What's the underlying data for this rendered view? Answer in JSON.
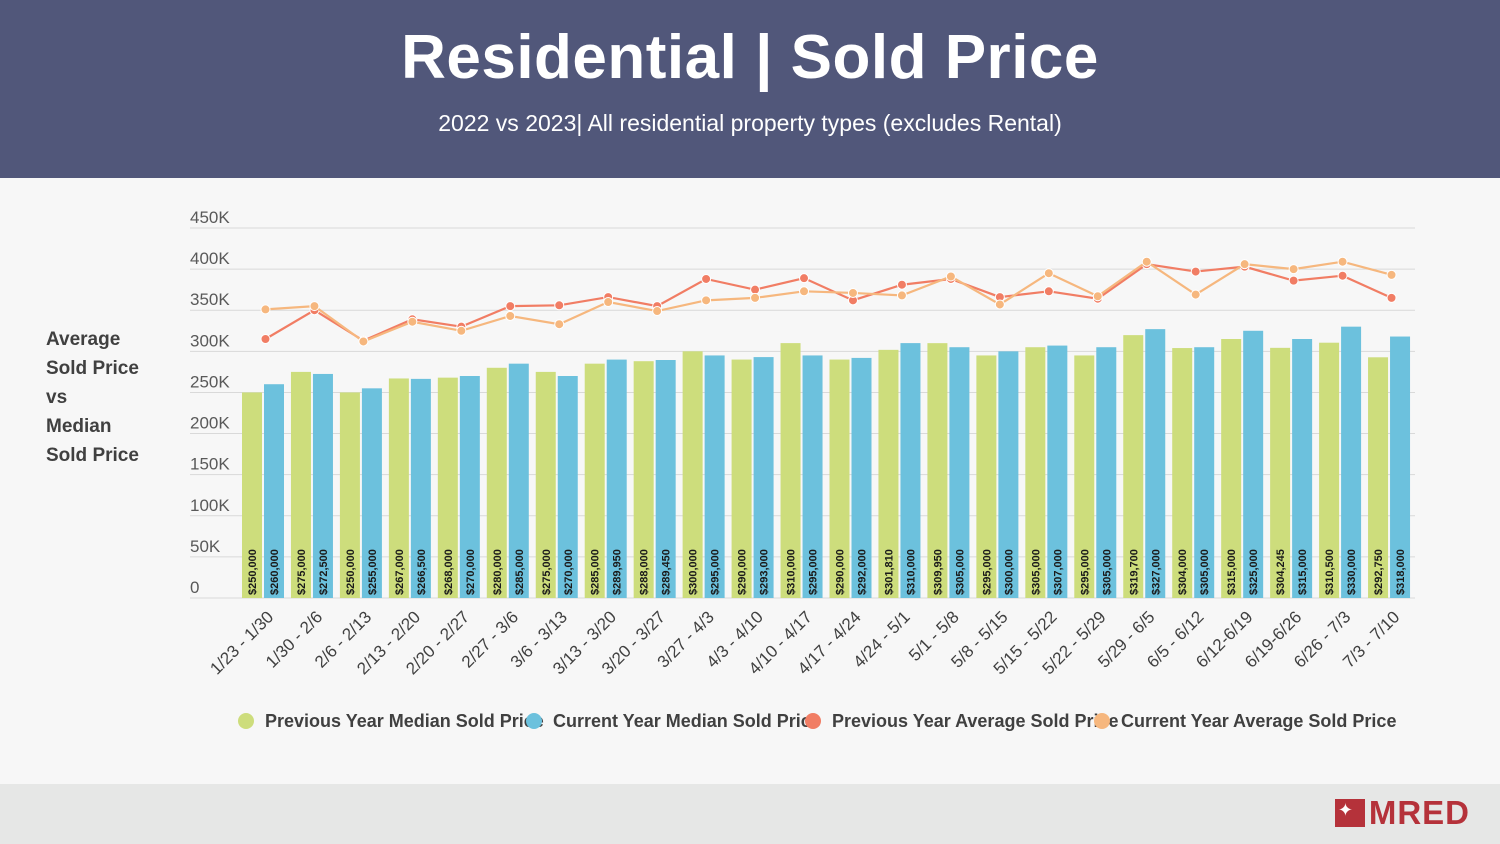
{
  "header": {
    "title": "Residential | Sold Price",
    "subtitle": "2022 vs 2023| All residential property types (excludes Rental)"
  },
  "side_label": [
    "Average",
    "Sold Price",
    "vs",
    "Median",
    "Sold Price"
  ],
  "logo": {
    "text": "MRED"
  },
  "colors": {
    "header_bg": "#51577a",
    "prev_median": "#cddd7c",
    "curr_median": "#6cc1dd",
    "prev_average": "#f17d64",
    "curr_average": "#f6b77e",
    "logo": "#b5323a"
  },
  "chart_data": {
    "type": "bar",
    "categories": [
      "1/23 - 1/30",
      "1/30 - 2/6",
      "2/6 - 2/13",
      "2/13 - 2/20",
      "2/20 - 2/27",
      "2/27 - 3/6",
      "3/6 - 3/13",
      "3/13 - 3/20",
      "3/20 - 3/27",
      "3/27 - 4/3",
      "4/3 - 4/10",
      "4/10 - 4/17",
      "4/17 - 4/24",
      "4/24 - 5/1",
      "5/1 - 5/8",
      "5/8 - 5/15",
      "5/15 - 5/22",
      "5/22 - 5/29",
      "5/29 - 6/5",
      "6/5 - 6/12",
      "6/12-6/19",
      "6/19-6/26",
      "6/26 - 7/3",
      "7/3 - 7/10"
    ],
    "ylim": [
      0,
      450000
    ],
    "yticks": [
      {
        "value": 0,
        "label": "0"
      },
      {
        "value": 50000,
        "label": "50K"
      },
      {
        "value": 100000,
        "label": "100K"
      },
      {
        "value": 150000,
        "label": "150K"
      },
      {
        "value": 200000,
        "label": "200K"
      },
      {
        "value": 250000,
        "label": "250K"
      },
      {
        "value": 300000,
        "label": "300K"
      },
      {
        "value": 350000,
        "label": "350K"
      },
      {
        "value": 400000,
        "label": "400K"
      },
      {
        "value": 450000,
        "label": "450K"
      }
    ],
    "grid": true,
    "legend_position": "bottom",
    "series": [
      {
        "name": "Previous Year Median Sold Price",
        "kind": "bar",
        "color": "#cddd7c",
        "values": [
          250000,
          275000,
          250000,
          267000,
          268000,
          280000,
          275000,
          285000,
          288000,
          300000,
          290000,
          310000,
          290000,
          301810,
          309950,
          295000,
          305000,
          295000,
          319700,
          304000,
          315000,
          304245,
          310500,
          292750
        ],
        "labels": [
          "$250,000",
          "$275,000",
          "$250,000",
          "$267,000",
          "$268,000",
          "$280,000",
          "$275,000",
          "$285,000",
          "$288,000",
          "$300,000",
          "$290,000",
          "$310,000",
          "$290,000",
          "$301,810",
          "$309,950",
          "$295,000",
          "$305,000",
          "$295,000",
          "$319,700",
          "$304,000",
          "$315,000",
          "$304,245",
          "$310,500",
          "$292,750"
        ]
      },
      {
        "name": "Current Year Median Sold Price",
        "kind": "bar",
        "color": "#6cc1dd",
        "values": [
          260000,
          272500,
          255000,
          266500,
          270000,
          285000,
          270000,
          289950,
          289450,
          295000,
          293000,
          295000,
          292000,
          310000,
          305000,
          300000,
          307000,
          305000,
          327000,
          305000,
          325000,
          315000,
          330000,
          318000
        ],
        "labels": [
          "$260,000",
          "$272,500",
          "$255,000",
          "$266,500",
          "$270,000",
          "$285,000",
          "$270,000",
          "$289,950",
          "$289,450",
          "$295,000",
          "$293,000",
          "$295,000",
          "$292,000",
          "$310,000",
          "$305,000",
          "$300,000",
          "$307,000",
          "$305,000",
          "$327,000",
          "$305,000",
          "$325,000",
          "$315,000",
          "$330,000",
          "$318,000"
        ]
      },
      {
        "name": "Previous Year Average Sold Price",
        "kind": "line",
        "color": "#f17d64",
        "values": [
          315000,
          350000,
          313000,
          339000,
          330000,
          355000,
          356000,
          366000,
          355000,
          388000,
          375000,
          389000,
          362000,
          381000,
          388000,
          366000,
          373000,
          364000,
          406000,
          397000,
          403000,
          386000,
          392000,
          365000
        ]
      },
      {
        "name": "Current Year Average Sold Price",
        "kind": "line",
        "color": "#f6b77e",
        "values": [
          351000,
          355000,
          312000,
          336000,
          325000,
          343000,
          333000,
          360000,
          349000,
          362000,
          365000,
          373000,
          371000,
          368000,
          391000,
          357000,
          395000,
          367000,
          409000,
          369000,
          406000,
          400000,
          409000,
          393000
        ]
      }
    ]
  }
}
